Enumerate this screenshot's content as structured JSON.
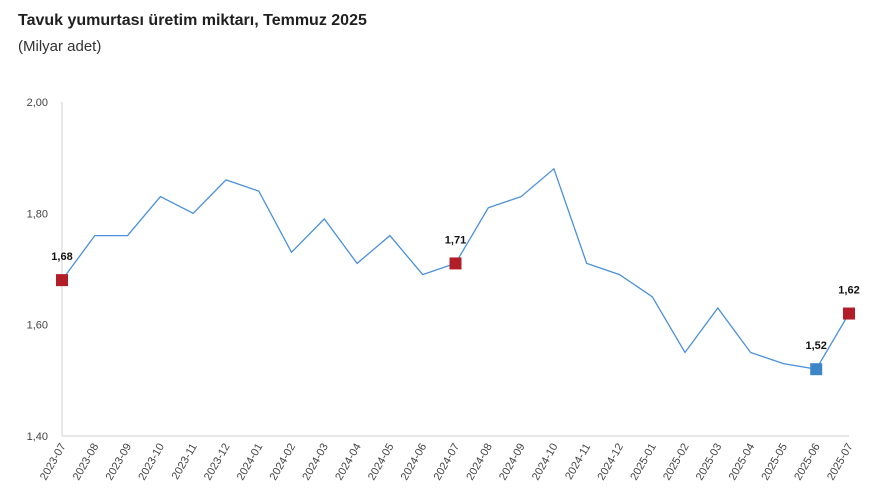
{
  "title": "Tavuk yumurtası üretim miktarı, Temmuz 2025",
  "subtitle": "(Milyar adet)",
  "chart_data": {
    "type": "line",
    "categories": [
      "2023-07",
      "2023-08",
      "2023-09",
      "2023-10",
      "2023-11",
      "2023-12",
      "2024-01",
      "2024-02",
      "2024-03",
      "2024-04",
      "2024-05",
      "2024-06",
      "2024-07",
      "2024-08",
      "2024-09",
      "2024-10",
      "2024-11",
      "2024-12",
      "2025-01",
      "2025-02",
      "2025-03",
      "2025-04",
      "2025-05",
      "2025-06",
      "2025-07"
    ],
    "series": [
      {
        "values": [
          1.68,
          1.76,
          1.76,
          1.83,
          1.8,
          1.86,
          1.84,
          1.73,
          1.79,
          1.71,
          1.76,
          1.69,
          1.71,
          1.81,
          1.83,
          1.88,
          1.71,
          1.69,
          1.65,
          1.55,
          1.63,
          1.55,
          1.53,
          1.52,
          1.62
        ]
      }
    ],
    "yticks": [
      "2,00",
      "1,80",
      "1,60",
      "1,40"
    ],
    "ytick_values": [
      2.0,
      1.8,
      1.6,
      1.4
    ],
    "ylim": [
      1.4,
      2.0
    ],
    "grid": false,
    "line_color": "#4a90d9",
    "highlights": [
      {
        "index": 0,
        "label": "1,68",
        "color": "#b21e28"
      },
      {
        "index": 12,
        "label": "1,71",
        "color": "#b21e28"
      },
      {
        "index": 23,
        "label": "1,52",
        "color": "#3c86c8"
      },
      {
        "index": 24,
        "label": "1,62",
        "color": "#b21e28"
      }
    ]
  }
}
